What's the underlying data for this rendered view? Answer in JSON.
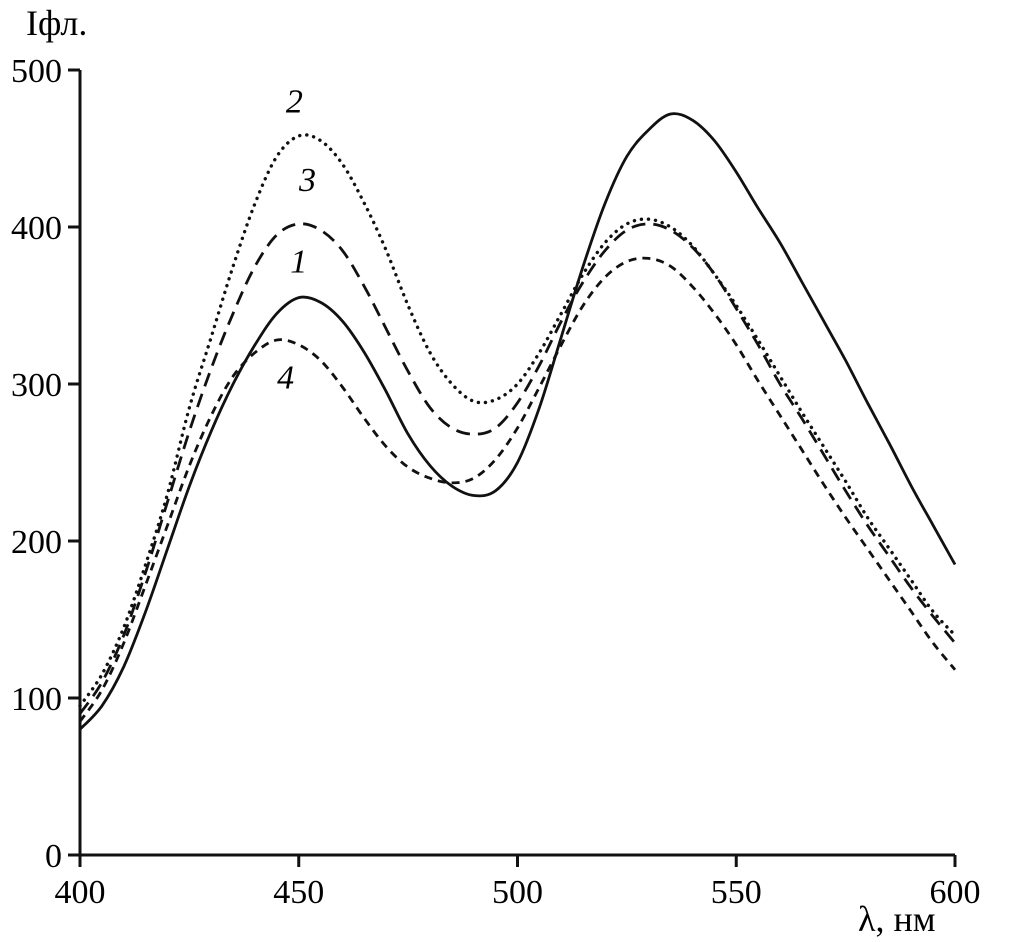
{
  "chart_data": {
    "type": "line",
    "title": "",
    "xlabel": "λ, нм",
    "ylabel": "Iфл.",
    "xlim": [
      400,
      600
    ],
    "ylim": [
      0,
      500
    ],
    "xticks": [
      400,
      450,
      500,
      550,
      600
    ],
    "yticks": [
      0,
      100,
      200,
      300,
      400,
      500
    ],
    "grid": false,
    "legend_position": "inline-curve-numbers",
    "line_color": "#111111",
    "x": [
      400,
      405,
      410,
      415,
      420,
      425,
      430,
      435,
      440,
      445,
      450,
      455,
      460,
      465,
      470,
      475,
      480,
      485,
      490,
      495,
      500,
      505,
      510,
      515,
      520,
      525,
      530,
      535,
      540,
      545,
      550,
      555,
      560,
      565,
      570,
      575,
      580,
      585,
      590,
      595,
      600
    ],
    "series": [
      {
        "name": "1",
        "style": "solid",
        "values": [
          80,
          95,
          120,
          155,
          195,
          235,
          270,
          300,
          325,
          345,
          355,
          352,
          340,
          320,
          295,
          268,
          248,
          235,
          229,
          232,
          250,
          285,
          330,
          375,
          415,
          445,
          462,
          472,
          468,
          455,
          435,
          412,
          390,
          365,
          340,
          315,
          288,
          262,
          235,
          210,
          185
        ]
      },
      {
        "name": "2",
        "style": "dotted",
        "values": [
          95,
          115,
          145,
          185,
          230,
          285,
          330,
          375,
          415,
          445,
          458,
          455,
          440,
          415,
          385,
          350,
          320,
          300,
          289,
          290,
          300,
          320,
          345,
          370,
          390,
          402,
          405,
          400,
          388,
          370,
          350,
          328,
          305,
          282,
          260,
          238,
          215,
          195,
          175,
          155,
          140
        ]
      },
      {
        "name": "3",
        "style": "dashed",
        "values": [
          90,
          110,
          140,
          180,
          225,
          270,
          310,
          345,
          375,
          395,
          402,
          398,
          385,
          362,
          335,
          308,
          285,
          272,
          268,
          272,
          288,
          312,
          340,
          365,
          385,
          398,
          402,
          398,
          387,
          370,
          348,
          325,
          300,
          278,
          255,
          232,
          210,
          190,
          170,
          152,
          135
        ]
      },
      {
        "name": "4",
        "style": "short-dash",
        "values": [
          85,
          105,
          135,
          172,
          210,
          248,
          280,
          305,
          320,
          328,
          325,
          315,
          298,
          278,
          260,
          247,
          240,
          237,
          240,
          252,
          272,
          298,
          325,
          350,
          368,
          378,
          380,
          375,
          362,
          345,
          325,
          302,
          280,
          258,
          236,
          215,
          195,
          175,
          155,
          135,
          118
        ]
      }
    ],
    "annotations": [
      {
        "label": "2",
        "x": 449,
        "y": 473
      },
      {
        "label": "3",
        "x": 452,
        "y": 423
      },
      {
        "label": "1",
        "x": 450,
        "y": 371
      },
      {
        "label": "4",
        "x": 447,
        "y": 297
      }
    ]
  }
}
